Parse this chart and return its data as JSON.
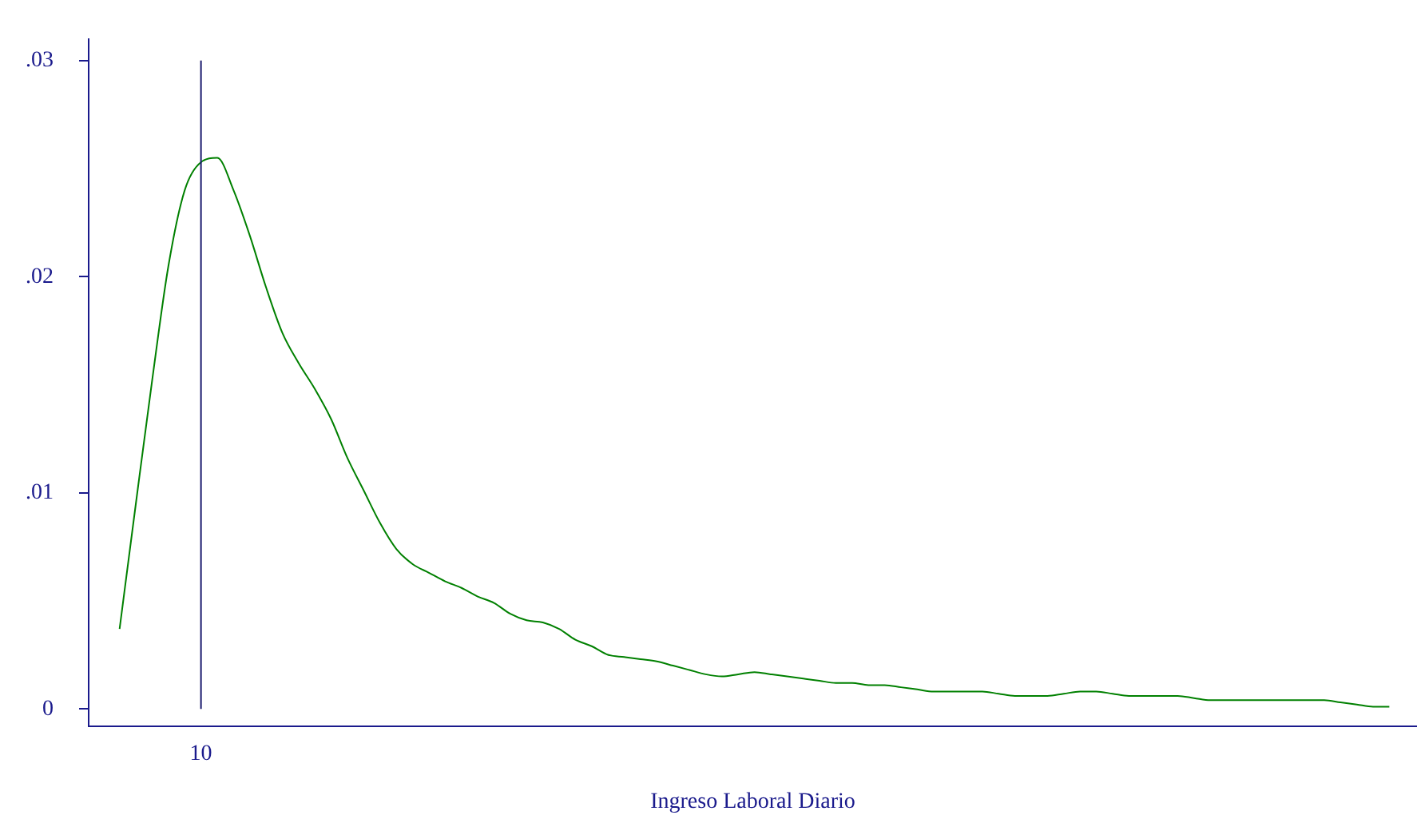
{
  "chart_data": {
    "type": "line",
    "xlabel": "Ingreso Laboral Diario",
    "categories": [
      null,
      null,
      null,
      null,
      null,
      "10",
      null,
      null,
      null,
      null,
      null,
      null,
      null,
      null,
      null,
      null,
      null,
      null,
      null,
      null,
      null,
      null,
      null,
      null,
      null,
      null,
      null,
      null,
      null,
      null,
      null,
      null,
      null,
      null,
      null,
      null,
      null,
      null,
      null,
      null,
      null,
      null,
      null,
      null,
      null,
      null,
      null,
      null,
      null,
      null,
      null,
      null,
      null,
      null,
      null,
      null,
      null,
      null,
      null,
      null,
      null,
      null,
      null,
      null,
      null,
      null,
      null,
      null,
      null,
      null,
      null,
      null,
      null,
      null,
      null,
      null,
      null,
      null,
      null
    ],
    "series": [
      {
        "color": "#008000",
        "values": [
          0.0037,
          0.0095,
          0.0152,
          0.0205,
          0.024,
          0.0253,
          0.0255,
          0.024,
          0.0219,
          0.0195,
          0.0174,
          0.016,
          0.0148,
          0.0134,
          0.0116,
          0.0101,
          0.0086,
          0.0074,
          0.0067,
          0.0063,
          0.0059,
          0.0056,
          0.0052,
          0.0049,
          0.0044,
          0.0041,
          0.004,
          0.0037,
          0.0032,
          0.0029,
          0.0025,
          0.0024,
          0.0023,
          0.0022,
          0.002,
          0.0018,
          0.0016,
          0.0015,
          0.0016,
          0.0017,
          0.0016,
          0.0015,
          0.0014,
          0.0013,
          0.0012,
          0.0012,
          0.0011,
          0.0011,
          0.001,
          0.0009,
          0.0008,
          0.0008,
          0.0008,
          0.0008,
          0.0007,
          0.0006,
          0.0006,
          0.0006,
          0.0007,
          0.0008,
          0.0008,
          0.0007,
          0.0006,
          0.0006,
          0.0006,
          0.0006,
          0.0005,
          0.0004,
          0.0004,
          0.0004,
          0.0004,
          0.0004,
          0.0004,
          0.0004,
          0.0004,
          0.0003,
          0.0002,
          0.0001,
          0.0001
        ]
      }
    ],
    "ylim": [
      -0.0008,
      0.031
    ],
    "yticks": [
      0,
      {
        "value": 0.01,
        "label": ".01"
      },
      {
        "value": 0.02,
        "label": ".02"
      },
      {
        "value": 0.03,
        "label": ".03"
      }
    ],
    "ref_lines": [
      {
        "axis": "x",
        "value": "10",
        "color": "#1a1a6e"
      }
    ],
    "grid": false,
    "legend": false,
    "marker": "none",
    "line_style": "solid"
  }
}
